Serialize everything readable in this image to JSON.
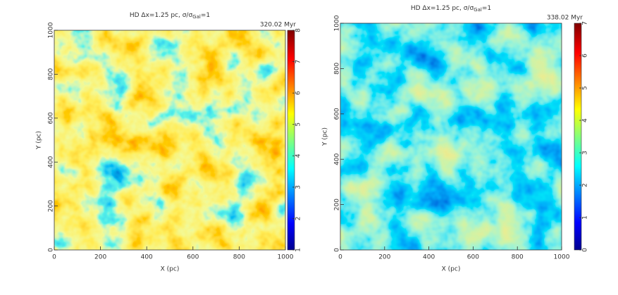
{
  "chart_data": [
    {
      "type": "map",
      "title": "HD Δx=1.25 pc, σ/σ",
      "title_sub": "Gal",
      "title_end": "=1",
      "time_label": "320.02 Myr",
      "xlabel": "X (pc)",
      "ylabel": "Y (pc)",
      "xlim": [
        0,
        1000
      ],
      "ylim": [
        0,
        1000
      ],
      "xticks": [
        0,
        200,
        400,
        600,
        800,
        1000
      ],
      "yticks": [
        0,
        200,
        400,
        600,
        800,
        1000
      ],
      "colorbar_lim": [
        1,
        8
      ],
      "colorbar_ticks": [
        1,
        2,
        3,
        4,
        5,
        6,
        7,
        8
      ]
    },
    {
      "type": "map",
      "title": "HD Δx=1.25 pc, σ/σ",
      "title_sub": "Gal",
      "title_end": "=1",
      "time_label": "338.02 Myr",
      "xlabel": "X (pc)",
      "ylabel": "Y (pc)",
      "xlim": [
        0,
        1000
      ],
      "ylim": [
        0,
        1000
      ],
      "xticks": [
        0,
        200,
        400,
        600,
        800,
        1000
      ],
      "yticks": [
        0,
        200,
        400,
        600,
        800,
        1000
      ],
      "colorbar_lim": [
        0,
        7
      ],
      "colorbar_ticks": [
        0,
        1,
        2,
        3,
        4,
        5,
        6,
        7
      ]
    }
  ]
}
